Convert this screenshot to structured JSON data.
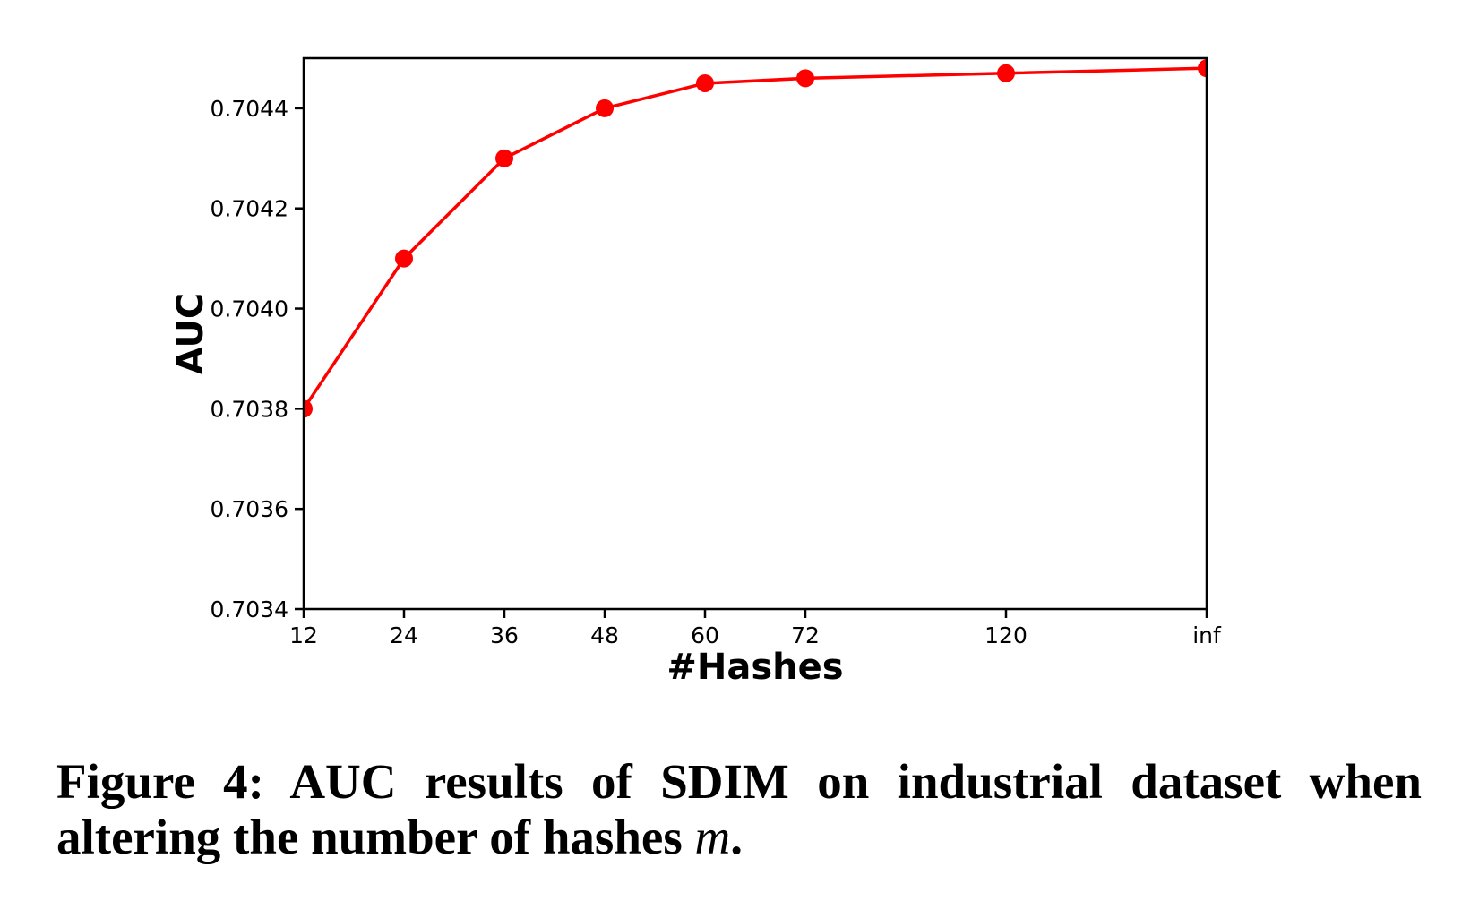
{
  "figure": {
    "caption_line1": "Figure 4: AUC results of SDIM on industrial dataset when",
    "caption_line2_prefix": "altering the number of hashes ",
    "caption_line2_var": "m",
    "caption_line2_suffix": "."
  },
  "chart_data": {
    "type": "line",
    "title": "",
    "xlabel": "#Hashes",
    "ylabel": "AUC",
    "categories": [
      "12",
      "24",
      "36",
      "48",
      "60",
      "72",
      "120",
      "inf"
    ],
    "x_positions": [
      0,
      1,
      2,
      3,
      4,
      5,
      7,
      9
    ],
    "xlim": [
      0,
      9
    ],
    "series": [
      {
        "name": "SDIM",
        "color": "#ff0000",
        "marker": "circle",
        "values": [
          0.7038,
          0.7041,
          0.7043,
          0.7044,
          0.70445,
          0.70446,
          0.70447,
          0.70448
        ]
      }
    ],
    "yticks": [
      0.7034,
      0.7036,
      0.7038,
      0.704,
      0.7042,
      0.7044
    ],
    "ytick_labels": [
      "0.7034",
      "0.7036",
      "0.7038",
      "0.7040",
      "0.7042",
      "0.7044"
    ],
    "ylim": [
      0.7034,
      0.7045
    ],
    "grid": false,
    "legend_position": "none",
    "axis_color": "#000000",
    "text_color": "#000000"
  }
}
